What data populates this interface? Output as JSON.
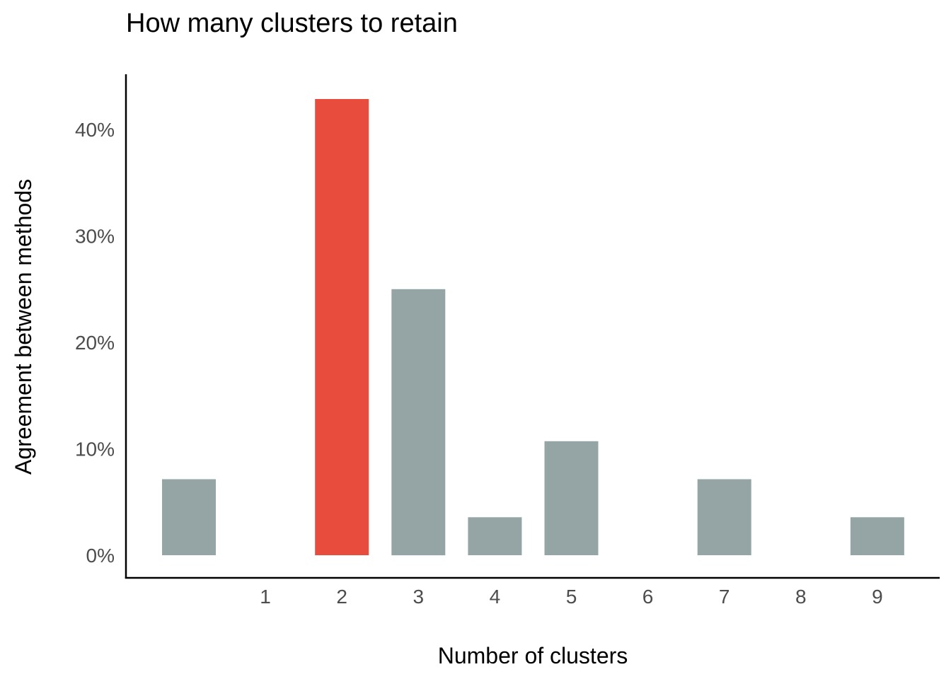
{
  "chart_data": {
    "type": "bar",
    "title": "How many clusters to retain",
    "xlabel": "Number of clusters",
    "ylabel": "Agreement between methods",
    "categories": [
      "",
      "1",
      "2",
      "3",
      "4",
      "5",
      "6",
      "7",
      "8",
      "9"
    ],
    "x_tick_labels": [
      "1",
      "2",
      "3",
      "4",
      "5",
      "6",
      "7",
      "8",
      "9"
    ],
    "values": [
      7.14,
      0,
      42.86,
      25.0,
      3.57,
      10.71,
      0,
      7.14,
      0,
      3.57
    ],
    "highlight_index": 2,
    "ylim": [
      -2,
      45
    ],
    "y_ticks": [
      0,
      10,
      20,
      30,
      40
    ],
    "y_tick_labels": [
      "0%",
      "10%",
      "20%",
      "30%",
      "40%"
    ],
    "grid": false,
    "legend": "none",
    "colors": {
      "default_bar": "#95A5A6",
      "highlight_bar": "#E74C3C",
      "axis": "#000000",
      "tick_text": "#4D4D4D"
    }
  }
}
